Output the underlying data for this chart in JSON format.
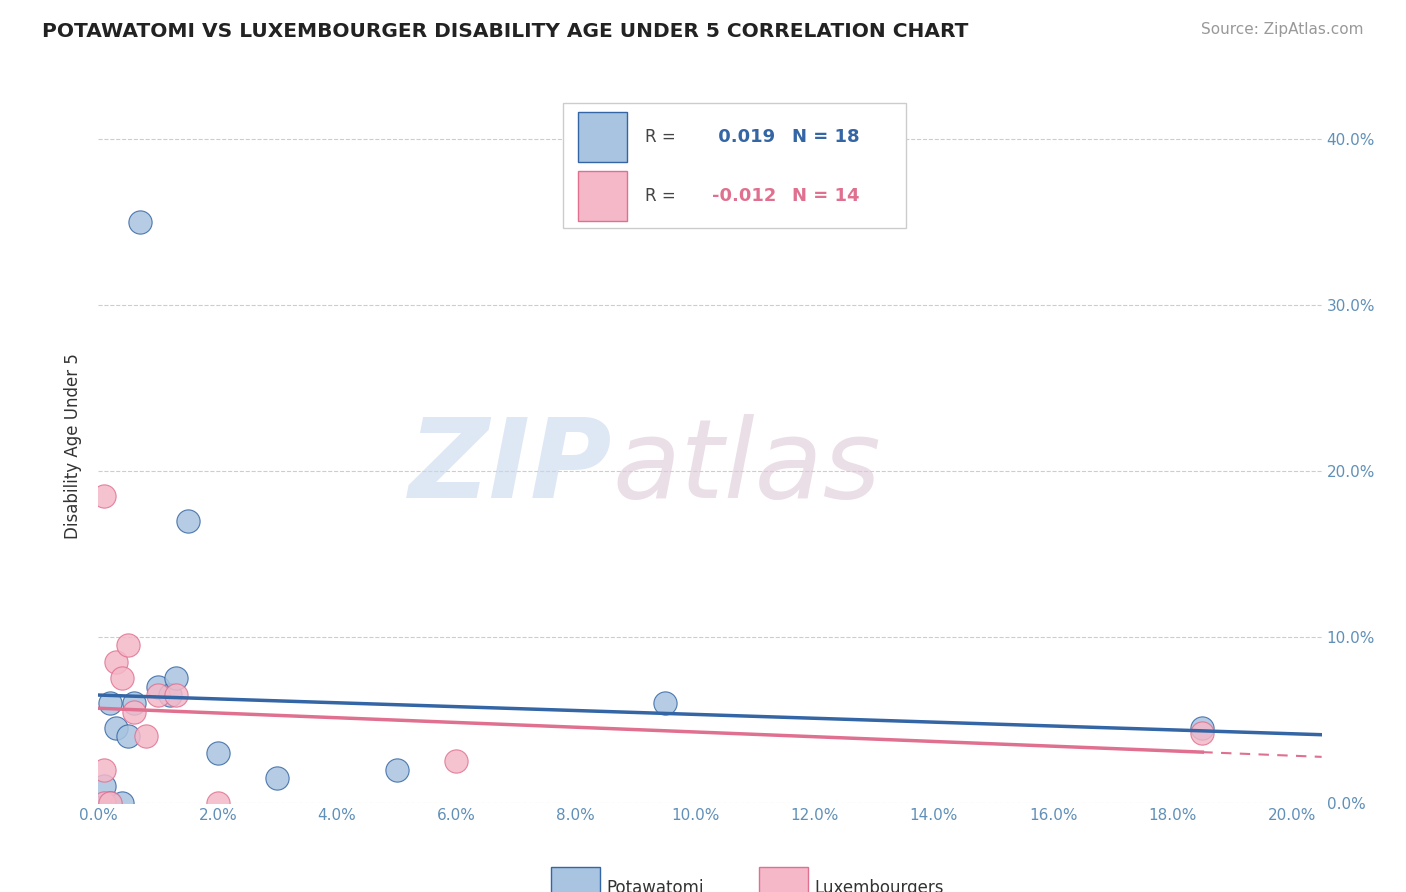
{
  "title": "POTAWATOMI VS LUXEMBOURGER DISABILITY AGE UNDER 5 CORRELATION CHART",
  "source": "Source: ZipAtlas.com",
  "ylabel": "Disability Age Under 5",
  "xlim": [
    0.0,
    0.205
  ],
  "ylim": [
    0.0,
    0.43
  ],
  "xticks": [
    0.0,
    0.02,
    0.04,
    0.06,
    0.08,
    0.1,
    0.12,
    0.14,
    0.16,
    0.18,
    0.2
  ],
  "yticks": [
    0.0,
    0.1,
    0.2,
    0.3,
    0.4
  ],
  "potawatomi_x": [
    0.001,
    0.001,
    0.002,
    0.002,
    0.003,
    0.004,
    0.005,
    0.006,
    0.007,
    0.01,
    0.012,
    0.013,
    0.015,
    0.02,
    0.03,
    0.05,
    0.095,
    0.185
  ],
  "potawatomi_y": [
    0.0,
    0.01,
    0.0,
    0.06,
    0.045,
    0.0,
    0.04,
    0.06,
    0.35,
    0.07,
    0.065,
    0.075,
    0.17,
    0.03,
    0.015,
    0.02,
    0.06,
    0.045
  ],
  "luxembourger_x": [
    0.001,
    0.001,
    0.001,
    0.002,
    0.003,
    0.004,
    0.005,
    0.006,
    0.008,
    0.01,
    0.013,
    0.02,
    0.06,
    0.185
  ],
  "luxembourger_y": [
    0.0,
    0.02,
    0.185,
    0.0,
    0.085,
    0.075,
    0.095,
    0.055,
    0.04,
    0.065,
    0.065,
    0.0,
    0.025,
    0.042
  ],
  "potawatomi_color": "#a8c4e0",
  "luxembourger_color": "#f4b8c8",
  "potawatomi_line_color": "#3465a4",
  "luxembourger_line_color": "#e07090",
  "R_potawatomi": "0.019",
  "N_potawatomi": "18",
  "R_luxembourger": "-0.012",
  "N_luxembourger": "14",
  "background_color": "#ffffff",
  "grid_color": "#c8c8c8"
}
